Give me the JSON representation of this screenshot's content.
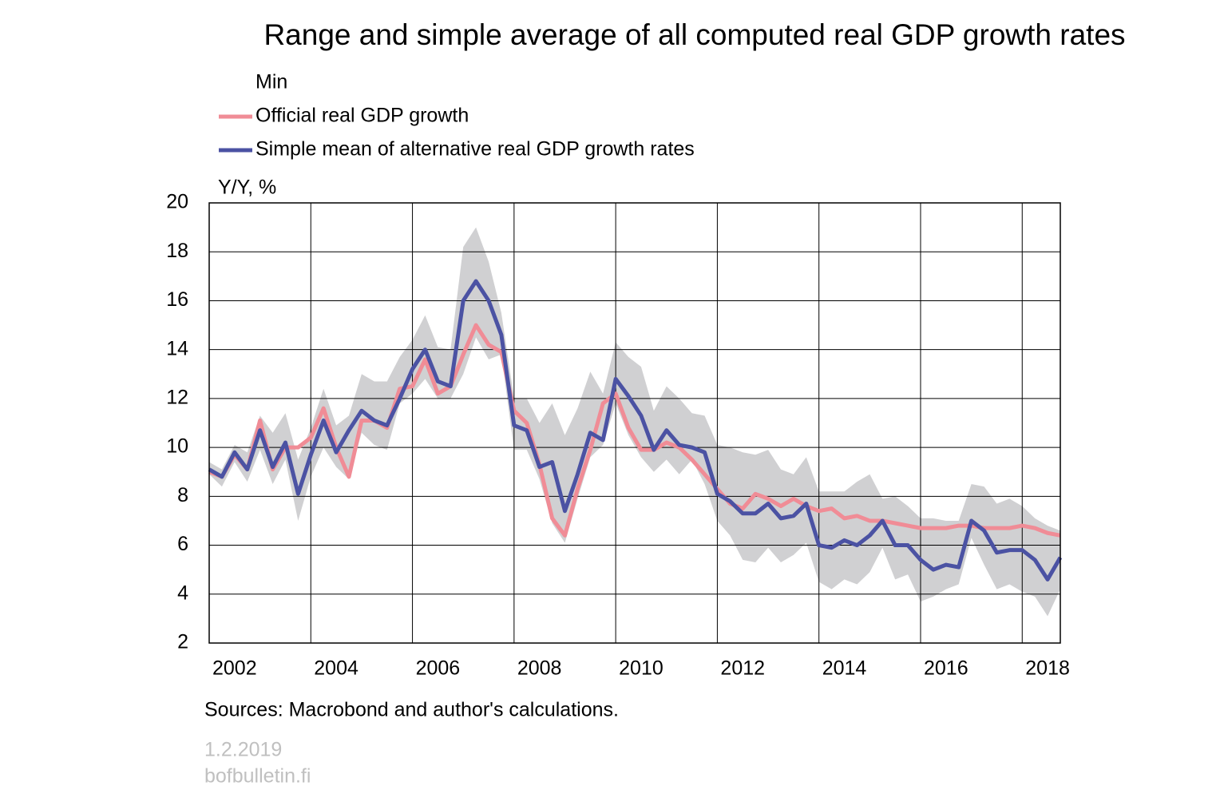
{
  "chart_data": {
    "type": "line",
    "title": "Range and simple average of all computed real GDP growth rates",
    "y_label": "Y/Y, %",
    "source": "Sources: Macrobond and author's calculations.",
    "date": "1.2.2019",
    "site": "bofbulletin.fi",
    "categories": [
      null,
      null,
      "2002",
      null,
      null,
      null,
      null,
      null,
      null,
      null,
      "2004",
      null,
      null,
      null,
      null,
      null,
      null,
      null,
      "2006",
      null,
      null,
      null,
      null,
      null,
      null,
      null,
      "2008",
      null,
      null,
      null,
      null,
      null,
      null,
      null,
      "2010",
      null,
      null,
      null,
      null,
      null,
      null,
      null,
      "2012",
      null,
      null,
      null,
      null,
      null,
      null,
      null,
      "2014",
      null,
      null,
      null,
      null,
      null,
      null,
      null,
      "2016",
      null,
      null,
      null,
      null,
      null,
      null,
      null,
      "2018",
      null
    ],
    "ylim": [
      2,
      20
    ],
    "yticks": [
      2,
      4,
      6,
      8,
      10,
      12,
      14,
      16,
      18,
      20
    ],
    "grid": true,
    "series": [
      {
        "type": "area",
        "color": "#d0d0d2",
        "values": [
          9.4,
          9.1,
          10.1,
          9.8,
          11.3,
          10.6,
          11.4,
          9.5,
          10.8,
          12.4,
          10.9,
          11.3,
          13.0,
          12.7,
          12.7,
          13.7,
          14.4,
          15.4,
          14.1,
          14.0,
          18.2,
          19.0,
          17.6,
          15.5,
          12.0,
          12.0,
          11.0,
          11.8,
          10.5,
          11.6,
          13.1,
          12.2,
          14.3,
          13.7,
          13.3,
          11.5,
          12.5,
          12.0,
          11.4,
          11.3,
          10.1,
          10.0,
          9.8,
          9.7,
          9.9,
          9.1,
          8.9,
          9.6,
          8.2,
          8.2,
          8.2,
          8.6,
          8.9,
          7.9,
          8.0,
          7.6,
          7.1,
          7.1,
          7.0,
          7.0,
          8.5,
          8.4,
          7.7,
          7.9,
          7.6,
          7.1,
          6.8,
          6.6
        ]
      },
      {
        "type": "area",
        "name": "Min",
        "color": "#ffffff",
        "values": [
          8.9,
          8.4,
          9.4,
          8.6,
          9.9,
          8.5,
          9.5,
          7.0,
          8.8,
          10.0,
          9.2,
          8.7,
          10.6,
          10.1,
          9.9,
          11.8,
          12.2,
          12.8,
          12.0,
          12.0,
          13.0,
          14.5,
          13.6,
          13.8,
          9.9,
          9.9,
          8.7,
          6.9,
          6.1,
          7.9,
          9.6,
          10.1,
          11.8,
          10.5,
          9.6,
          9.0,
          9.5,
          8.9,
          9.5,
          8.5,
          7.0,
          6.4,
          5.4,
          5.3,
          5.9,
          5.3,
          5.6,
          6.1,
          4.5,
          4.2,
          4.6,
          4.4,
          4.9,
          5.9,
          4.6,
          4.8,
          3.7,
          3.9,
          4.2,
          4.4,
          6.3,
          5.2,
          4.2,
          4.4,
          4.1,
          3.9,
          3.1,
          4.2
        ]
      },
      {
        "type": "line",
        "name": "Official real GDP growth",
        "color": "#f08c96",
        "values": [
          9.0,
          8.8,
          9.7,
          9.1,
          11.1,
          9.1,
          10.0,
          10.0,
          10.4,
          11.6,
          10.0,
          8.8,
          11.1,
          11.1,
          10.8,
          12.4,
          12.5,
          13.6,
          12.2,
          12.5,
          13.8,
          15.0,
          14.2,
          13.9,
          11.5,
          11.0,
          9.3,
          7.1,
          6.4,
          8.3,
          9.9,
          11.8,
          12.2,
          10.8,
          9.9,
          9.9,
          10.2,
          10.0,
          9.5,
          8.9,
          8.3,
          7.7,
          7.5,
          8.1,
          7.9,
          7.6,
          7.9,
          7.6,
          7.4,
          7.5,
          7.1,
          7.2,
          7.0,
          7.0,
          6.9,
          6.8,
          6.7,
          6.7,
          6.7,
          6.8,
          6.8,
          6.7,
          6.7,
          6.7,
          6.8,
          6.7,
          6.5,
          6.4
        ]
      },
      {
        "type": "line",
        "name": "Simple mean of alternative real GDP growth rates",
        "color": "#4b52a3",
        "values": [
          9.1,
          8.8,
          9.8,
          9.1,
          10.7,
          9.2,
          10.2,
          8.1,
          9.7,
          11.1,
          9.8,
          10.7,
          11.5,
          11.1,
          10.9,
          12.0,
          13.2,
          14.0,
          12.7,
          12.5,
          16.0,
          16.8,
          16.0,
          14.6,
          10.9,
          10.7,
          9.2,
          9.4,
          7.4,
          8.9,
          10.6,
          10.3,
          12.8,
          12.1,
          11.3,
          9.9,
          10.7,
          10.1,
          10.0,
          9.8,
          8.1,
          7.8,
          7.3,
          7.3,
          7.7,
          7.1,
          7.2,
          7.7,
          6.0,
          5.9,
          6.2,
          6.0,
          6.4,
          7.0,
          6.0,
          6.0,
          5.4,
          5.0,
          5.2,
          5.1,
          7.0,
          6.6,
          5.7,
          5.8,
          5.8,
          5.4,
          4.6,
          5.5
        ]
      }
    ]
  }
}
